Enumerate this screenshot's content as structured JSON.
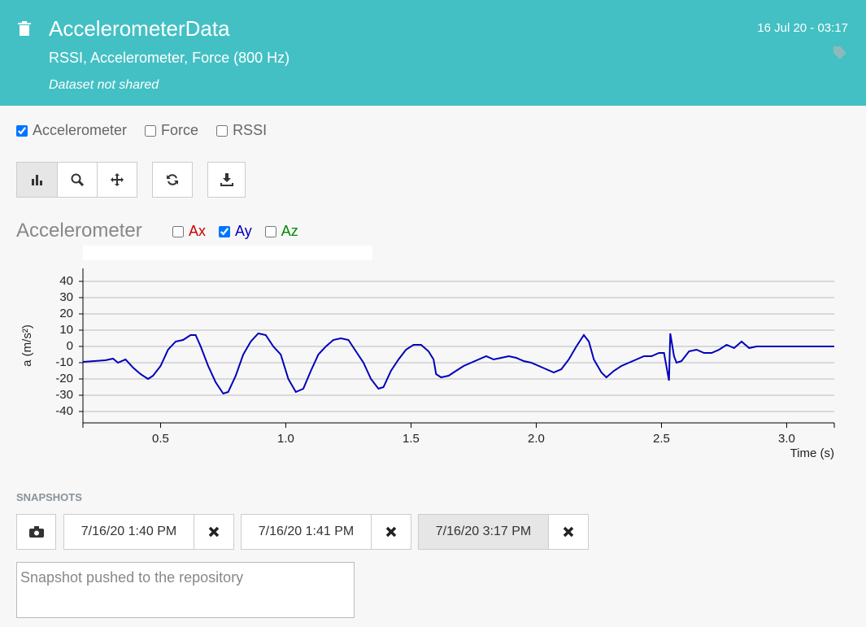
{
  "header": {
    "title": "AccelerometerData",
    "subtitle": "RSSI, Accelerometer, Force (800 Hz)",
    "status": "Dataset not shared",
    "date": "16 Jul 20 - 03:17"
  },
  "sensors": [
    {
      "label": "Accelerometer",
      "checked": true
    },
    {
      "label": "Force",
      "checked": false
    },
    {
      "label": "RSSI",
      "checked": false
    }
  ],
  "section": {
    "title": "Accelerometer",
    "axes": [
      {
        "label": "Ax",
        "checked": false,
        "color": "#cc0000"
      },
      {
        "label": "Ay",
        "checked": true,
        "color": "#0000bb"
      },
      {
        "label": "Az",
        "checked": false,
        "color": "#008800"
      }
    ]
  },
  "chart_data": {
    "type": "line",
    "y_label": "a (m/s²)",
    "x_label": "Time (s)",
    "x": [
      0.19,
      0.28,
      0.31,
      0.33,
      0.36,
      0.39,
      0.42,
      0.45,
      0.47,
      0.5,
      0.53,
      0.56,
      0.59,
      0.62,
      0.64,
      0.66,
      0.69,
      0.72,
      0.75,
      0.77,
      0.8,
      0.83,
      0.86,
      0.89,
      0.92,
      0.95,
      0.98,
      1.01,
      1.04,
      1.07,
      1.1,
      1.13,
      1.16,
      1.19,
      1.22,
      1.25,
      1.28,
      1.31,
      1.34,
      1.37,
      1.39,
      1.42,
      1.45,
      1.48,
      1.51,
      1.54,
      1.57,
      1.59,
      1.6,
      1.62,
      1.65,
      1.68,
      1.71,
      1.74,
      1.77,
      1.8,
      1.83,
      1.86,
      1.89,
      1.92,
      1.95,
      1.98,
      2.01,
      2.04,
      2.07,
      2.1,
      2.13,
      2.16,
      2.19,
      2.21,
      2.23,
      2.26,
      2.28,
      2.31,
      2.34,
      2.37,
      2.4,
      2.43,
      2.46,
      2.49,
      2.51,
      2.53,
      2.535,
      2.55,
      2.56,
      2.58,
      2.61,
      2.64,
      2.67,
      2.7,
      2.73,
      2.76,
      2.79,
      2.82,
      2.85,
      2.88,
      2.94,
      3.0,
      3.19
    ],
    "series": [
      {
        "name": "Ay",
        "color": "#0000bb",
        "values": [
          -9.5,
          -8.5,
          -7.5,
          -10,
          -8,
          -13,
          -17,
          -20,
          -18,
          -12,
          -2,
          3,
          4,
          7,
          7,
          0,
          -12,
          -22,
          -29,
          -28,
          -18,
          -5,
          3,
          8,
          7,
          0,
          -5,
          -20,
          -28,
          -26,
          -15,
          -5,
          0,
          4,
          5,
          4,
          -3,
          -10,
          -20,
          -26,
          -25,
          -15,
          -8,
          -2,
          1,
          1,
          -3,
          -8,
          -17,
          -19,
          -18,
          -15,
          -12,
          -10,
          -8,
          -6,
          -8,
          -7,
          -6,
          -7,
          -9,
          -10,
          -12,
          -14,
          -16,
          -14,
          -8,
          0,
          7,
          3,
          -8,
          -16,
          -19,
          -15,
          -12,
          -10,
          -8,
          -6,
          -6,
          -4,
          -4,
          -21,
          8,
          -6,
          -10,
          -9,
          -3,
          -2,
          -4,
          -4,
          -2,
          1,
          -1,
          3,
          -1,
          0,
          0,
          0,
          0
        ]
      }
    ],
    "xlim": [
      0.19,
      3.19
    ],
    "ylim": [
      -47,
      48
    ],
    "xticks": [
      0.5,
      {
        "value": 1,
        "label": "1.0"
      },
      1.5,
      {
        "value": 2,
        "label": "2.0"
      },
      2.5,
      {
        "value": 3,
        "label": "3.0"
      }
    ],
    "yticks": [
      40,
      30,
      20,
      10,
      0,
      -10,
      -20,
      -30,
      -40
    ],
    "grid": true
  },
  "snapshots": {
    "title": "SNAPSHOTS",
    "items": [
      {
        "label": "7/16/20 1:40 PM",
        "active": false
      },
      {
        "label": "7/16/20 1:41 PM",
        "active": false
      },
      {
        "label": "7/16/20 3:17 PM",
        "active": true
      }
    ],
    "note": "Snapshot pushed to the repository"
  }
}
